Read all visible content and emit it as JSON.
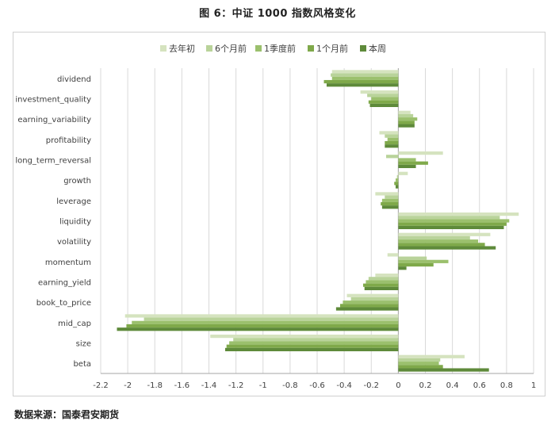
{
  "figure": {
    "title": "图 6：中证 1000 指数风格变化",
    "source": "数据来源：国泰君安期货"
  },
  "colors": {
    "series": [
      "#d5e3bf",
      "#b9d39a",
      "#9bc06d",
      "#7fa94a",
      "#5e8a3a"
    ],
    "grid": "#d9d9d9",
    "axis": "#a6a6a6",
    "text": "#404040"
  },
  "chart_data": {
    "type": "bar",
    "orientation": "horizontal",
    "title": "",
    "legend_position": "top",
    "xlim": [
      -2.2,
      1
    ],
    "x_ticks": [
      -2.2,
      -2,
      -1.8,
      -1.6,
      -1.4,
      -1.2,
      -1,
      -0.8,
      -0.6,
      -0.4,
      -0.2,
      0,
      0.2,
      0.4,
      0.6,
      0.8,
      1
    ],
    "x_tick_labels": [
      "-2.2",
      "-2",
      "-1.8",
      "-1.6",
      "-1.4",
      "-1.2",
      "-1",
      "-0.8",
      "-0.6",
      "-0.4",
      "-0.2",
      "0",
      "0.2",
      "0.4",
      "0.6",
      "0.8",
      "1"
    ],
    "grid": true,
    "categories": [
      "dividend",
      "investment_quality",
      "earning_variability",
      "profitability",
      "long_term_reversal",
      "growth",
      "leverage",
      "liquidity",
      "volatility",
      "momentum",
      "earning_yield",
      "book_to_price",
      "mid_cap",
      "size",
      "beta"
    ],
    "series": [
      {
        "name": "去年初",
        "values": [
          -0.49,
          -0.28,
          0.09,
          -0.14,
          0.33,
          0.07,
          -0.17,
          0.89,
          0.68,
          -0.08,
          -0.17,
          -0.38,
          -2.02,
          -1.39,
          0.49
        ]
      },
      {
        "name": "6个月前",
        "values": [
          -0.5,
          -0.23,
          0.11,
          -0.1,
          -0.09,
          -0.01,
          -0.1,
          0.75,
          0.53,
          0.21,
          -0.22,
          -0.35,
          -1.88,
          -1.22,
          0.31
        ]
      },
      {
        "name": "1季度前",
        "values": [
          -0.49,
          -0.2,
          0.14,
          -0.08,
          0.13,
          -0.02,
          -0.12,
          0.82,
          0.59,
          0.37,
          -0.24,
          -0.41,
          -1.97,
          -1.25,
          0.3
        ]
      },
      {
        "name": "1个月前",
        "values": [
          -0.55,
          -0.22,
          0.12,
          -0.1,
          0.22,
          -0.03,
          -0.13,
          0.8,
          0.64,
          0.26,
          -0.26,
          -0.43,
          -2.01,
          -1.27,
          0.33
        ]
      },
      {
        "name": "本周",
        "values": [
          -0.53,
          -0.21,
          0.12,
          -0.1,
          0.13,
          -0.02,
          -0.12,
          0.78,
          0.72,
          0.06,
          -0.25,
          -0.46,
          -2.08,
          -1.28,
          0.67
        ]
      }
    ]
  }
}
